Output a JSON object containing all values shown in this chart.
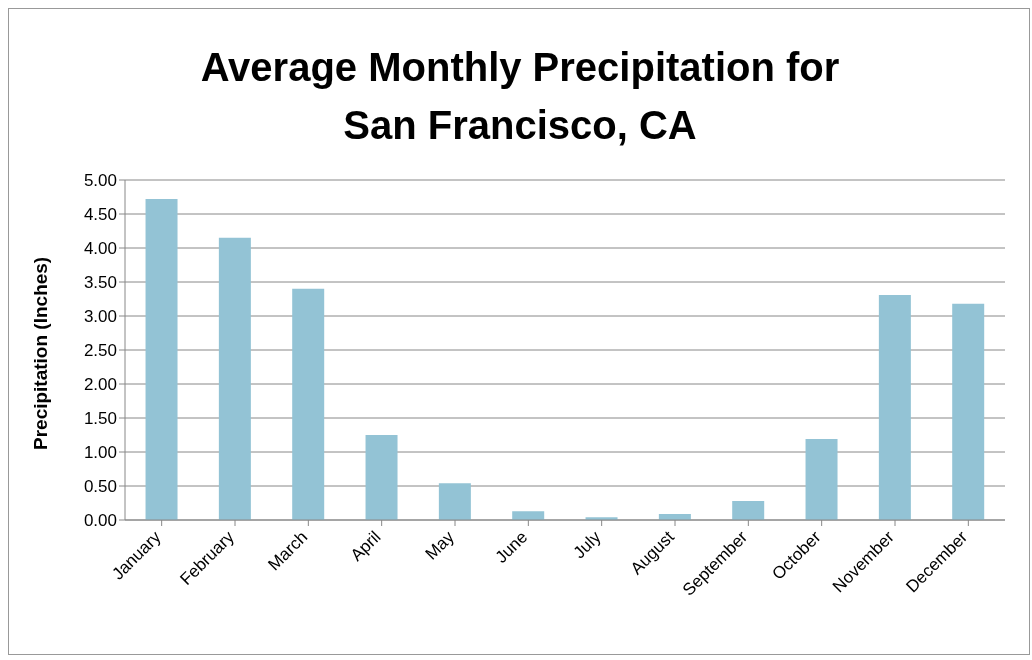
{
  "chart_data": {
    "type": "bar",
    "title": "Average Monthly Precipitation for San Francisco, CA",
    "ylabel": "Precipitation (Inches)",
    "categories": [
      "January",
      "February",
      "March",
      "April",
      "May",
      "June",
      "July",
      "August",
      "September",
      "October",
      "November",
      "December"
    ],
    "values": [
      4.72,
      4.15,
      3.4,
      1.25,
      0.54,
      0.13,
      0.04,
      0.09,
      0.28,
      1.19,
      3.31,
      3.18
    ],
    "color": "#93c3d5",
    "ylim": [
      0,
      5
    ],
    "yticks": [
      {
        "value": 0,
        "label": "0.00"
      },
      {
        "value": 0.5,
        "label": "0.50"
      },
      {
        "value": 1,
        "label": "1.00"
      },
      {
        "value": 1.5,
        "label": "1.50"
      },
      {
        "value": 2,
        "label": "2.00"
      },
      {
        "value": 2.5,
        "label": "2.50"
      },
      {
        "value": 3,
        "label": "3.00"
      },
      {
        "value": 3.5,
        "label": "3.50"
      },
      {
        "value": 4,
        "label": "4.00"
      },
      {
        "value": 4.5,
        "label": "4.50"
      },
      {
        "value": 5,
        "label": "5.00"
      }
    ],
    "grid": "y"
  }
}
